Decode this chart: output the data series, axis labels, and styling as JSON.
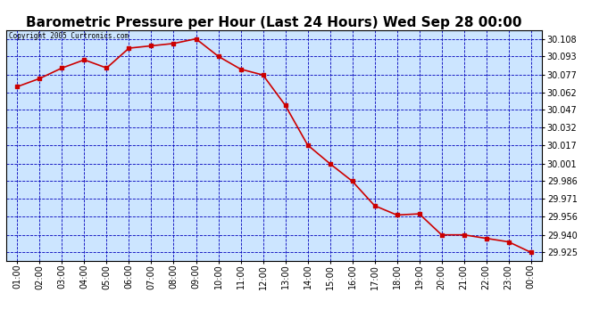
{
  "title": "Barometric Pressure per Hour (Last 24 Hours) Wed Sep 28 00:00",
  "x_labels": [
    "01:00",
    "02:00",
    "03:00",
    "04:00",
    "05:00",
    "06:00",
    "07:00",
    "08:00",
    "09:00",
    "10:00",
    "11:00",
    "12:00",
    "13:00",
    "14:00",
    "15:00",
    "16:00",
    "17:00",
    "18:00",
    "19:00",
    "20:00",
    "21:00",
    "22:00",
    "23:00",
    "00:00"
  ],
  "y_values": [
    30.067,
    30.074,
    30.083,
    30.09,
    30.083,
    30.1,
    30.102,
    30.104,
    30.108,
    30.093,
    30.082,
    30.077,
    30.051,
    30.017,
    30.001,
    29.986,
    29.965,
    29.957,
    29.958,
    29.94,
    29.94,
    29.937,
    29.934,
    29.925
  ],
  "line_color": "#cc0000",
  "marker_color": "#cc0000",
  "plot_bg_color": "#cce5ff",
  "fig_bg_color": "#ffffff",
  "grid_color": "#0000bb",
  "border_color": "#000000",
  "title_fontsize": 11,
  "tick_fontsize": 7,
  "copyright_text": "Copyright 2005 Curtronics.com",
  "ylim_min": 29.918,
  "ylim_max": 30.1155,
  "ytick_values": [
    30.108,
    30.093,
    30.077,
    30.062,
    30.047,
    30.032,
    30.017,
    30.001,
    29.986,
    29.971,
    29.956,
    29.94,
    29.925
  ]
}
